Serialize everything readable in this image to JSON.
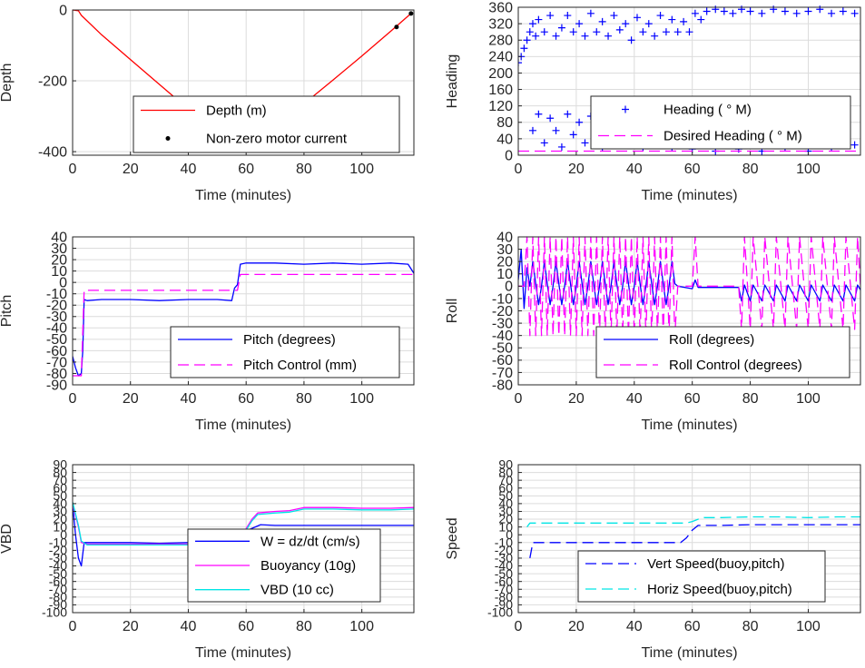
{
  "chart_data": [
    {
      "type": "line",
      "xlabel": "Time (minutes)",
      "ylabel": "Depth",
      "xlim": [
        0,
        118
      ],
      "ylim": [
        -410,
        0
      ],
      "xticks": [
        0,
        20,
        40,
        60,
        80,
        100
      ],
      "yticks": [
        0,
        -200,
        -400
      ],
      "grid": true,
      "legend_position": "lower-right",
      "series": [
        {
          "name": "Depth (m)",
          "style": "solid",
          "color": "#ff0000",
          "x": [
            0,
            2,
            3,
            10,
            20,
            30,
            40,
            50,
            55,
            58,
            60,
            62,
            64,
            70,
            80,
            90,
            100,
            110,
            117
          ],
          "y": [
            0,
            -2,
            -15,
            -70,
            -140,
            -210,
            -280,
            -345,
            -375,
            -390,
            -392,
            -386,
            -375,
            -335,
            -265,
            -198,
            -130,
            -60,
            -10
          ]
        },
        {
          "name": "Non-zero motor current",
          "style": "dots",
          "color": "#000000",
          "x": [
            57,
            58,
            59,
            60,
            61,
            62,
            63,
            76,
            78,
            80,
            81,
            112,
            117
          ],
          "y": [
            -388,
            -391,
            -393,
            -393,
            -391,
            -388,
            -384,
            -302,
            -285,
            -272,
            -265,
            -48,
            -10
          ]
        }
      ]
    },
    {
      "type": "scatter",
      "xlabel": "Time (minutes)",
      "ylabel": "Heading",
      "xlim": [
        0,
        118
      ],
      "ylim": [
        0,
        360
      ],
      "xticks": [
        0,
        20,
        40,
        60,
        80,
        100
      ],
      "yticks": [
        0,
        40,
        80,
        120,
        160,
        200,
        240,
        280,
        320,
        360
      ],
      "grid": true,
      "legend_position": "center-right",
      "series": [
        {
          "name": "Heading (  ° M)",
          "style": "plus",
          "color": "#0000ff",
          "x": [
            0,
            1,
            2,
            3,
            4,
            5,
            6,
            7,
            9,
            11,
            13,
            15,
            17,
            19,
            21,
            23,
            25,
            27,
            29,
            31,
            33,
            35,
            37,
            39,
            41,
            43,
            45,
            47,
            49,
            51,
            53,
            55,
            57,
            59,
            61,
            63,
            65,
            68,
            71,
            74,
            77,
            80,
            84,
            88,
            92,
            96,
            100,
            104,
            108,
            112,
            116,
            5,
            7,
            9,
            11,
            13,
            15,
            17,
            19,
            21,
            23,
            25,
            27,
            29,
            31,
            33,
            35,
            37,
            39,
            41,
            43,
            45,
            47,
            49,
            51,
            53,
            56,
            60,
            64,
            68,
            72,
            76,
            80,
            84,
            88,
            92,
            96,
            100,
            104,
            108,
            112,
            116
          ],
          "y": [
            225,
            240,
            260,
            280,
            300,
            320,
            290,
            330,
            300,
            340,
            290,
            310,
            340,
            300,
            320,
            290,
            345,
            300,
            325,
            290,
            340,
            305,
            320,
            280,
            335,
            300,
            320,
            290,
            340,
            300,
            330,
            300,
            325,
            300,
            345,
            330,
            350,
            355,
            350,
            345,
            355,
            350,
            345,
            355,
            350,
            345,
            350,
            355,
            345,
            350,
            345,
            60,
            100,
            30,
            90,
            60,
            20,
            100,
            50,
            80,
            30,
            95,
            55,
            20,
            100,
            60,
            30,
            90,
            50,
            100,
            20,
            80,
            40,
            100,
            60,
            20,
            30,
            15,
            40,
            10,
            35,
            15,
            30,
            10,
            40,
            20,
            35,
            10,
            30,
            20,
            40,
            25
          ]
        },
        {
          "name": "Desired Heading (  ° M)",
          "style": "dashed",
          "color": "#ff00ff",
          "x": [
            0,
            118
          ],
          "y": [
            10,
            10
          ]
        }
      ]
    },
    {
      "type": "line",
      "xlabel": "Time (minutes)",
      "ylabel": "Pitch",
      "xlim": [
        0,
        118
      ],
      "ylim": [
        -90,
        40
      ],
      "xticks": [
        0,
        20,
        40,
        60,
        80,
        100
      ],
      "yticks": [
        40,
        30,
        20,
        10,
        0,
        -10,
        -20,
        -30,
        -40,
        -50,
        -60,
        -70,
        -80,
        -90
      ],
      "grid": true,
      "legend_position": "lower-right",
      "series": [
        {
          "name": "Pitch (degrees)",
          "style": "solid",
          "color": "#0000ff",
          "x": [
            0,
            1,
            2,
            3,
            3.5,
            4,
            5,
            10,
            20,
            30,
            40,
            50,
            55,
            56,
            57,
            58,
            60,
            70,
            80,
            90,
            100,
            110,
            116,
            117,
            118
          ],
          "y": [
            -65,
            -75,
            -82,
            -80,
            -60,
            -15,
            -16,
            -15,
            -15,
            -16,
            -15,
            -15,
            -16,
            -5,
            -2,
            16,
            17,
            17,
            16,
            17,
            16,
            17,
            16,
            12,
            8
          ]
        },
        {
          "name": "Pitch Control (mm)",
          "style": "dashed",
          "color": "#ff00ff",
          "x": [
            0,
            3,
            4,
            57,
            58,
            118
          ],
          "y": [
            -82,
            -82,
            -7,
            -7,
            7,
            7
          ]
        }
      ]
    },
    {
      "type": "line",
      "xlabel": "Time (minutes)",
      "ylabel": "Roll",
      "xlim": [
        0,
        118
      ],
      "ylim": [
        -80,
        40
      ],
      "xticks": [
        0,
        20,
        40,
        60,
        80,
        100
      ],
      "yticks": [
        40,
        30,
        20,
        10,
        0,
        -10,
        -20,
        -30,
        -40,
        -50,
        -60,
        -70,
        -80
      ],
      "grid": true,
      "legend_position": "lower-right",
      "series": [
        {
          "name": "Roll (degrees)",
          "style": "solid",
          "color": "#0000ff",
          "x": [
            0,
            1,
            2,
            3,
            4,
            5,
            6,
            7,
            8,
            9,
            10,
            11,
            12,
            13,
            14,
            15,
            16,
            17,
            18,
            19,
            20,
            21,
            22,
            23,
            24,
            25,
            26,
            27,
            28,
            29,
            30,
            31,
            32,
            33,
            34,
            35,
            36,
            37,
            38,
            39,
            40,
            41,
            42,
            43,
            44,
            45,
            46,
            47,
            48,
            49,
            50,
            51,
            52,
            53,
            54,
            55,
            60,
            61,
            62,
            64,
            70,
            76,
            77,
            78,
            80,
            81,
            84,
            85,
            88,
            89,
            92,
            93,
            96,
            97,
            100,
            101,
            104,
            105,
            108,
            109,
            112,
            113,
            116,
            117,
            118
          ],
          "y": [
            5,
            30,
            -18,
            15,
            0,
            20,
            2,
            -15,
            0,
            20,
            2,
            -15,
            0,
            20,
            2,
            -15,
            0,
            20,
            2,
            -15,
            0,
            20,
            2,
            -15,
            0,
            20,
            2,
            -15,
            0,
            20,
            2,
            -15,
            0,
            20,
            2,
            -15,
            0,
            20,
            2,
            -15,
            0,
            20,
            2,
            -15,
            0,
            20,
            2,
            -15,
            0,
            20,
            2,
            -15,
            0,
            20,
            2,
            0,
            -2,
            5,
            -1,
            -1,
            -1,
            -1,
            -12,
            1,
            -12,
            1,
            -12,
            1,
            -12,
            1,
            -12,
            1,
            -12,
            1,
            -12,
            1,
            -12,
            1,
            -12,
            1,
            -12,
            1,
            -12,
            1,
            -3
          ]
        },
        {
          "name": "Roll Control (degrees)",
          "style": "dashed",
          "color": "#ff00ff",
          "x": [
            0,
            2,
            3,
            4,
            5,
            6,
            7,
            8,
            9,
            10,
            11,
            12,
            13,
            14,
            15,
            16,
            17,
            18,
            19,
            20,
            21,
            22,
            23,
            24,
            25,
            26,
            27,
            28,
            29,
            30,
            31,
            32,
            33,
            34,
            35,
            36,
            37,
            38,
            39,
            40,
            41,
            42,
            43,
            44,
            45,
            46,
            47,
            48,
            49,
            50,
            51,
            52,
            53,
            54,
            55,
            60,
            61,
            62,
            65,
            76,
            77,
            78,
            80,
            81,
            84,
            85,
            88,
            89,
            92,
            93,
            96,
            97,
            100,
            101,
            104,
            105,
            108,
            109,
            112,
            113,
            116,
            117,
            118
          ],
          "y": [
            0,
            0,
            40,
            -40,
            40,
            -40,
            40,
            -40,
            40,
            -40,
            40,
            -40,
            40,
            -40,
            40,
            -40,
            40,
            -40,
            40,
            -40,
            40,
            -40,
            40,
            -40,
            40,
            -40,
            40,
            -40,
            40,
            -40,
            40,
            -40,
            40,
            -40,
            40,
            -40,
            40,
            -40,
            40,
            -40,
            40,
            -40,
            40,
            -40,
            40,
            -40,
            40,
            -40,
            40,
            -40,
            40,
            -40,
            40,
            -40,
            0,
            0,
            40,
            0,
            0,
            0,
            -35,
            40,
            -35,
            40,
            -35,
            40,
            -35,
            40,
            -35,
            40,
            -35,
            40,
            -35,
            40,
            -35,
            40,
            -35,
            40,
            -35,
            40,
            -35,
            40,
            0
          ]
        }
      ]
    },
    {
      "type": "line",
      "xlabel": "Time (minutes)",
      "ylabel": "VBD",
      "xlim": [
        0,
        118
      ],
      "ylim": [
        -100,
        90
      ],
      "xticks": [
        0,
        20,
        40,
        60,
        80,
        100
      ],
      "yticks": [
        90,
        80,
        70,
        60,
        50,
        40,
        30,
        20,
        10,
        0,
        -10,
        -20,
        -30,
        -40,
        -50,
        -60,
        -70,
        -80,
        -90,
        -100
      ],
      "grid": true,
      "legend_position": "lower-right",
      "series": [
        {
          "name": "W = dz/dt (cm/s)",
          "style": "solid",
          "color": "#0000ff",
          "x": [
            0,
            1,
            2,
            3,
            4,
            5,
            10,
            20,
            30,
            40,
            50,
            55,
            57,
            60,
            65,
            70,
            80,
            90,
            100,
            110,
            118
          ],
          "y": [
            40,
            0,
            -30,
            -40,
            -10,
            -10,
            -10,
            -10,
            -11,
            -10,
            -10,
            -10,
            -10,
            5,
            13,
            12,
            12,
            12,
            12,
            12,
            12
          ]
        },
        {
          "name": "Buoyancy (10g)",
          "style": "solid",
          "color": "#ff00ff",
          "x": [
            0,
            2,
            3,
            5,
            10,
            20,
            30,
            40,
            50,
            56,
            58,
            60,
            62,
            64,
            70,
            75,
            80,
            90,
            100,
            110,
            118
          ],
          "y": [
            40,
            10,
            -10,
            -12,
            -12,
            -12,
            -12,
            -12,
            -12,
            -12,
            -5,
            8,
            20,
            28,
            30,
            31,
            35,
            35,
            34,
            34,
            35
          ]
        },
        {
          "name": "VBD (10 cc)",
          "style": "solid",
          "color": "#00e5e5",
          "x": [
            0,
            2,
            3,
            5,
            10,
            20,
            30,
            40,
            50,
            56,
            58,
            60,
            62,
            64,
            70,
            75,
            80,
            90,
            100,
            110,
            118
          ],
          "y": [
            42,
            12,
            -8,
            -13,
            -13,
            -13,
            -13,
            -13,
            -13,
            -13,
            -7,
            6,
            18,
            26,
            28,
            29,
            33,
            33,
            32,
            32,
            33
          ]
        }
      ]
    },
    {
      "type": "line",
      "xlabel": "Time (minutes)",
      "ylabel": "Speed",
      "xlim": [
        0,
        118
      ],
      "ylim": [
        -100,
        90
      ],
      "xticks": [
        0,
        20,
        40,
        60,
        80,
        100
      ],
      "yticks": [
        90,
        80,
        70,
        60,
        50,
        40,
        30,
        20,
        10,
        0,
        -10,
        -20,
        -30,
        -40,
        -50,
        -60,
        -70,
        -80,
        -90,
        -100
      ],
      "grid": true,
      "legend_position": "lower-right",
      "series": [
        {
          "name": "Vert Speed(buoy,pitch)",
          "style": "dashed",
          "color": "#0000ff",
          "x": [
            4,
            5,
            10,
            20,
            30,
            40,
            50,
            56,
            58,
            60,
            62,
            64,
            70,
            80,
            90,
            100,
            110,
            118
          ],
          "y": [
            -30,
            -10,
            -10,
            -10,
            -10,
            -10,
            -10,
            -10,
            -4,
            6,
            12,
            12,
            12,
            13,
            13,
            13,
            13,
            13
          ]
        },
        {
          "name": "Horiz Speed(buoy,pitch)",
          "style": "dashed",
          "color": "#00e5e5",
          "x": [
            3,
            4,
            10,
            20,
            30,
            40,
            50,
            56,
            58,
            60,
            62,
            64,
            70,
            80,
            90,
            100,
            110,
            118
          ],
          "y": [
            10,
            15,
            15,
            15,
            15,
            15,
            15,
            15,
            15,
            17,
            20,
            22,
            22,
            23,
            23,
            22,
            23,
            23
          ]
        }
      ]
    }
  ]
}
